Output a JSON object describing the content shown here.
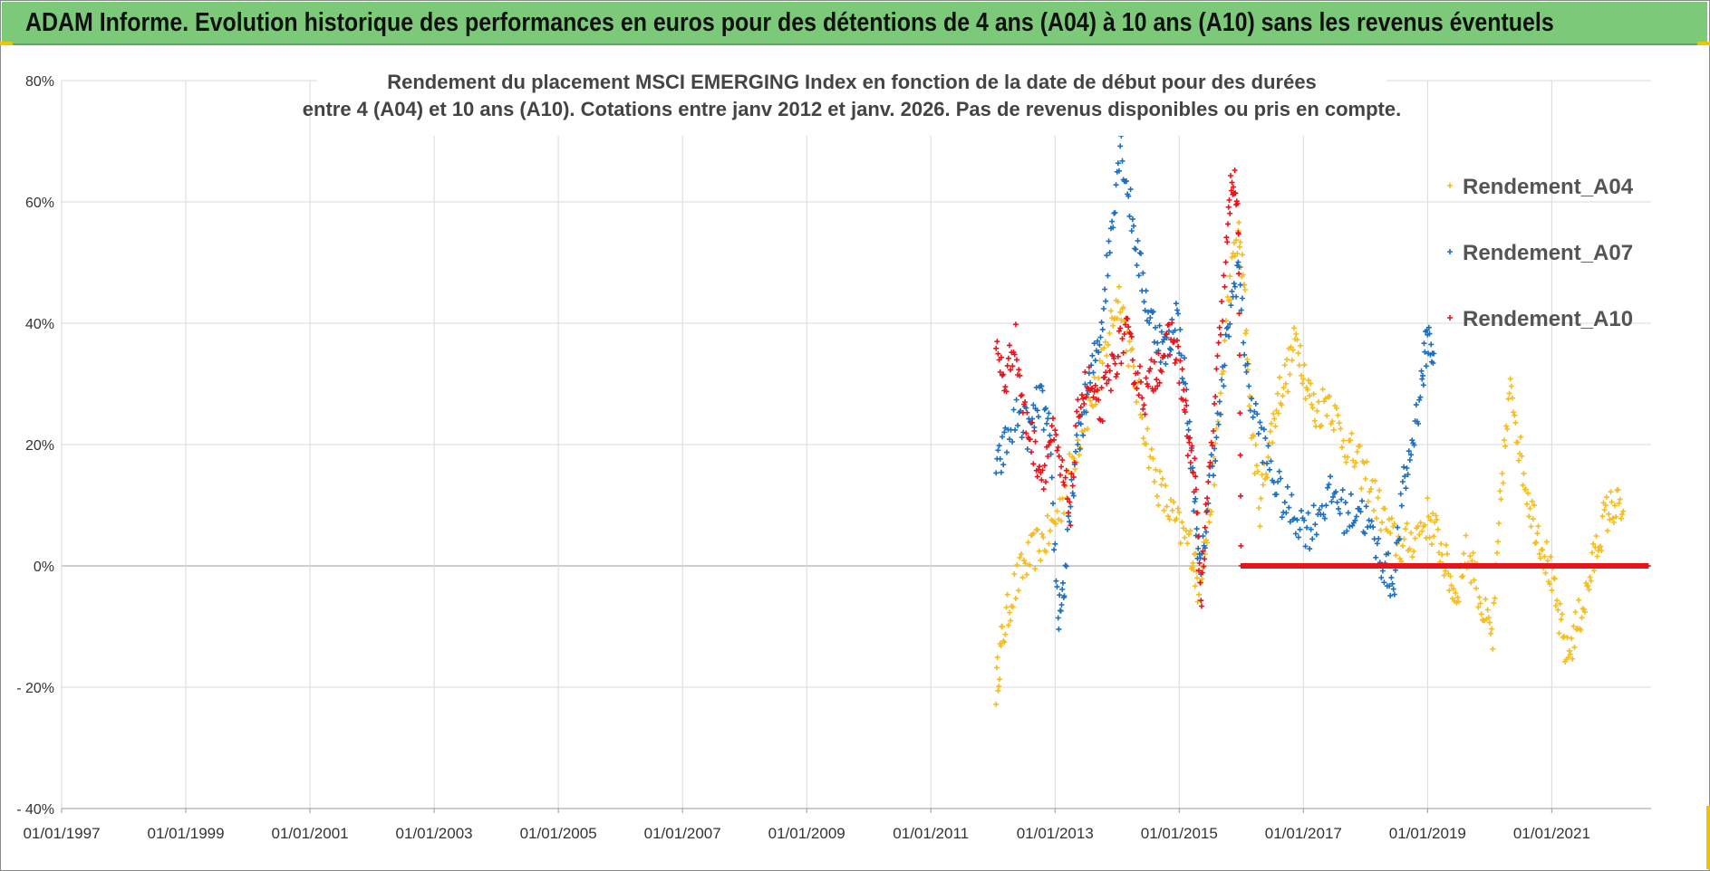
{
  "header": {
    "title": "ADAM Informe. Evolution historique des performances en euros pour des détentions de 4 ans (A04) à 10 ans (A10) sans les revenus éventuels"
  },
  "colors": {
    "header_bg": "#7dc97a",
    "A04": "#f5bd1f",
    "A07": "#1f6fbf",
    "A10": "#e8141c",
    "grid": "#d9d9d9"
  },
  "chart_data": {
    "type": "scatter",
    "title_lines": [
      "Rendement du placement MSCI EMERGING Index en fonction de la date de début pour des durées",
      "entre 4 (A04) et 10 ans (A10). Cotations entre janv 2012 et janv. 2026. Pas de revenus disponibles ou pris en compte."
    ],
    "xlabel": "",
    "ylabel": "",
    "x_range": [
      1997.0,
      2022.6
    ],
    "ylim": [
      -40,
      80
    ],
    "y_ticks": [
      {
        "value": 80,
        "label": "80%"
      },
      {
        "value": 60,
        "label": "60%"
      },
      {
        "value": 40,
        "label": "40%"
      },
      {
        "value": 20,
        "label": "20%"
      },
      {
        "value": 0,
        "label": "0%"
      },
      {
        "value": -20,
        "label": "- 20%"
      },
      {
        "value": -40,
        "label": "- 40%"
      }
    ],
    "x_ticks": [
      {
        "value": 1997,
        "label": "01/01/1997"
      },
      {
        "value": 1999,
        "label": "01/01/1999"
      },
      {
        "value": 2001,
        "label": "01/01/2001"
      },
      {
        "value": 2003,
        "label": "01/01/2003"
      },
      {
        "value": 2005,
        "label": "01/01/2005"
      },
      {
        "value": 2007,
        "label": "01/01/2007"
      },
      {
        "value": 2009,
        "label": "01/01/2009"
      },
      {
        "value": 2011,
        "label": "01/01/2011"
      },
      {
        "value": 2013,
        "label": "01/01/2013"
      },
      {
        "value": 2015,
        "label": "01/01/2015"
      },
      {
        "value": 2017,
        "label": "01/01/2017"
      },
      {
        "value": 2019,
        "label": "01/01/2019"
      },
      {
        "value": 2021,
        "label": "01/01/2021"
      }
    ],
    "legend_position": "top-right",
    "series": [
      {
        "name": "Rendement_A04",
        "color": "#f5bd1f",
        "points": [
          [
            2012.05,
            -20
          ],
          [
            2012.15,
            -12
          ],
          [
            2012.3,
            -5
          ],
          [
            2012.5,
            0
          ],
          [
            2012.7,
            3
          ],
          [
            2012.9,
            5
          ],
          [
            2013.1,
            10
          ],
          [
            2013.3,
            18
          ],
          [
            2013.5,
            25
          ],
          [
            2013.7,
            30
          ],
          [
            2013.9,
            40
          ],
          [
            2014.05,
            45
          ],
          [
            2014.2,
            35
          ],
          [
            2014.4,
            25
          ],
          [
            2014.6,
            15
          ],
          [
            2014.8,
            10
          ],
          [
            2015.0,
            6
          ],
          [
            2015.2,
            3
          ],
          [
            2015.3,
            -3
          ],
          [
            2015.45,
            5
          ],
          [
            2015.6,
            20
          ],
          [
            2015.8,
            45
          ],
          [
            2015.95,
            55
          ],
          [
            2016.05,
            45
          ],
          [
            2016.15,
            25
          ],
          [
            2016.3,
            10
          ],
          [
            2016.45,
            20
          ],
          [
            2016.6,
            28
          ],
          [
            2016.75,
            32
          ],
          [
            2016.9,
            38
          ],
          [
            2017.05,
            30
          ],
          [
            2017.2,
            25
          ],
          [
            2017.4,
            28
          ],
          [
            2017.6,
            22
          ],
          [
            2017.8,
            18
          ],
          [
            2018.0,
            15
          ],
          [
            2018.2,
            10
          ],
          [
            2018.4,
            5
          ],
          [
            2018.6,
            3
          ],
          [
            2018.8,
            5
          ],
          [
            2019.0,
            8
          ],
          [
            2019.15,
            5
          ],
          [
            2019.3,
            0
          ],
          [
            2019.45,
            -5
          ],
          [
            2019.6,
            2
          ],
          [
            2019.75,
            0
          ],
          [
            2019.9,
            -8
          ],
          [
            2020.05,
            -12
          ],
          [
            2020.2,
            15
          ],
          [
            2020.35,
            30
          ],
          [
            2020.5,
            18
          ],
          [
            2020.65,
            10
          ],
          [
            2020.8,
            5
          ],
          [
            2020.95,
            0
          ],
          [
            2021.1,
            -8
          ],
          [
            2021.25,
            -15
          ],
          [
            2021.4,
            -10
          ],
          [
            2021.55,
            -5
          ],
          [
            2021.7,
            2
          ],
          [
            2021.85,
            8
          ],
          [
            2022.0,
            10
          ],
          [
            2022.15,
            9
          ]
        ]
      },
      {
        "name": "Rendement_A07",
        "color": "#1f6fbf",
        "points": [
          [
            2012.05,
            15
          ],
          [
            2012.2,
            20
          ],
          [
            2012.4,
            25
          ],
          [
            2012.6,
            22
          ],
          [
            2012.75,
            28
          ],
          [
            2012.9,
            22
          ],
          [
            2013.05,
            -8
          ],
          [
            2013.15,
            -3
          ],
          [
            2013.3,
            15
          ],
          [
            2013.45,
            25
          ],
          [
            2013.6,
            32
          ],
          [
            2013.75,
            40
          ],
          [
            2013.9,
            55
          ],
          [
            2014.05,
            70
          ],
          [
            2014.2,
            60
          ],
          [
            2014.35,
            50
          ],
          [
            2014.5,
            42
          ],
          [
            2014.65,
            38
          ],
          [
            2014.8,
            35
          ],
          [
            2014.95,
            42
          ],
          [
            2015.1,
            30
          ],
          [
            2015.25,
            10
          ],
          [
            2015.35,
            -2
          ],
          [
            2015.5,
            15
          ],
          [
            2015.65,
            25
          ],
          [
            2015.8,
            40
          ],
          [
            2015.95,
            50
          ],
          [
            2016.1,
            30
          ],
          [
            2016.3,
            22
          ],
          [
            2016.5,
            15
          ],
          [
            2016.7,
            10
          ],
          [
            2016.9,
            8
          ],
          [
            2017.1,
            6
          ],
          [
            2017.3,
            10
          ],
          [
            2017.5,
            12
          ],
          [
            2017.7,
            8
          ],
          [
            2017.9,
            10
          ],
          [
            2018.1,
            5
          ],
          [
            2018.3,
            0
          ],
          [
            2018.45,
            -3
          ],
          [
            2018.6,
            12
          ],
          [
            2018.75,
            20
          ],
          [
            2018.9,
            30
          ],
          [
            2019.0,
            38
          ],
          [
            2019.1,
            35
          ]
        ]
      },
      {
        "name": "Rendement_A10",
        "color": "#e8141c",
        "points": [
          [
            2012.05,
            35
          ],
          [
            2012.2,
            30
          ],
          [
            2012.35,
            38
          ],
          [
            2012.5,
            25
          ],
          [
            2012.65,
            20
          ],
          [
            2012.8,
            15
          ],
          [
            2012.95,
            22
          ],
          [
            2013.1,
            15
          ],
          [
            2013.25,
            10
          ],
          [
            2013.4,
            28
          ],
          [
            2013.55,
            30
          ],
          [
            2013.7,
            25
          ],
          [
            2013.85,
            30
          ],
          [
            2014.0,
            35
          ],
          [
            2014.15,
            38
          ],
          [
            2014.3,
            32
          ],
          [
            2014.45,
            28
          ],
          [
            2014.6,
            32
          ],
          [
            2014.75,
            35
          ],
          [
            2014.9,
            38
          ],
          [
            2015.05,
            30
          ],
          [
            2015.15,
            20
          ],
          [
            2015.25,
            15
          ],
          [
            2015.35,
            -5
          ],
          [
            2015.45,
            10
          ],
          [
            2015.6,
            30
          ],
          [
            2015.75,
            50
          ],
          [
            2015.85,
            65
          ],
          [
            2015.95,
            58
          ],
          [
            2016.0,
            0
          ],
          [
            2016.5,
            0
          ],
          [
            2017.0,
            0
          ],
          [
            2017.5,
            0
          ],
          [
            2018.0,
            0
          ],
          [
            2018.5,
            0
          ],
          [
            2019.0,
            0
          ],
          [
            2019.5,
            0
          ],
          [
            2020.0,
            0
          ],
          [
            2020.5,
            0
          ],
          [
            2021.0,
            0
          ],
          [
            2021.5,
            0
          ],
          [
            2022.0,
            0
          ],
          [
            2022.55,
            0
          ]
        ]
      }
    ]
  }
}
